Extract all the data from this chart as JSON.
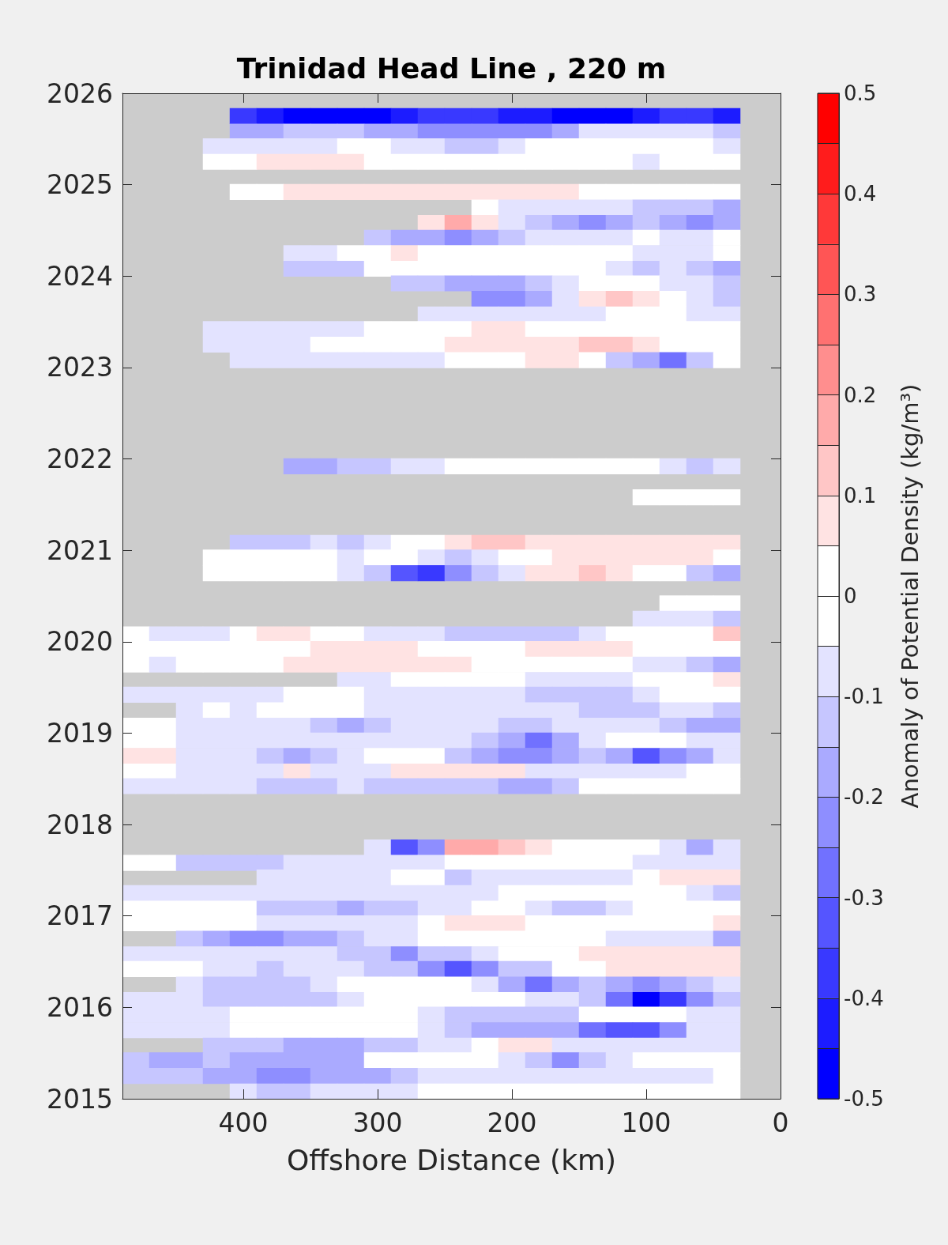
{
  "chart_data": {
    "type": "scatter",
    "title": "Trinidad Head Line , 220 m",
    "xlabel": "Offshore Distance (km)",
    "clabel": "Anomaly of Potential Density (kg/m³)",
    "marker": "square",
    "xlim": [
      490,
      0
    ],
    "xticks": [
      400,
      300,
      200,
      100,
      0
    ],
    "ylim": [
      2015,
      2026
    ],
    "yticks": [
      2015,
      2016,
      2017,
      2018,
      2019,
      2020,
      2021,
      2022,
      2023,
      2024,
      2025,
      2026
    ],
    "clim": [
      -0.5,
      0.5
    ],
    "cticks": [
      -0.5,
      {
        "value": -0.45,
        "label": null
      },
      -0.4,
      {
        "value": -0.35,
        "label": null
      },
      -0.3,
      {
        "value": -0.25,
        "label": null
      },
      -0.2,
      {
        "value": -0.15,
        "label": null
      },
      -0.1,
      {
        "value": -0.05,
        "label": null
      },
      0,
      {
        "value": 0.05,
        "label": null
      },
      0.1,
      {
        "value": 0.15,
        "label": null
      },
      0.2,
      {
        "value": 0.25,
        "label": null
      },
      0.3,
      {
        "value": 0.35,
        "label": null
      },
      0.4,
      {
        "value": 0.45,
        "label": null
      },
      0.5
    ],
    "x": [
      400,
      380,
      360,
      340,
      320,
      300,
      280,
      260,
      240,
      220,
      200,
      180,
      160,
      140,
      120,
      100,
      80,
      60,
      40,
      400,
      380,
      360,
      340,
      320,
      300,
      280,
      260,
      240,
      220,
      200,
      180,
      160,
      140,
      120,
      100,
      80,
      60,
      40,
      420,
      400,
      380,
      360,
      340,
      320,
      300,
      280,
      260,
      240,
      220,
      200,
      180,
      160,
      140,
      120,
      100,
      80,
      60,
      40,
      420,
      400,
      380,
      360,
      340,
      320,
      300,
      280,
      260,
      240,
      220,
      200,
      180,
      160,
      140,
      120,
      100,
      80,
      60,
      40,
      400,
      380,
      360,
      340,
      320,
      300,
      280,
      260,
      240,
      220,
      200,
      180,
      160,
      140,
      120,
      100,
      80,
      60,
      40,
      220,
      200,
      180,
      160,
      140,
      120,
      100,
      80,
      60,
      40,
      260,
      240,
      220,
      200,
      180,
      160,
      140,
      120,
      100,
      80,
      60,
      40,
      300,
      280,
      260,
      240,
      220,
      200,
      180,
      160,
      140,
      120,
      100,
      80,
      60,
      40,
      360,
      340,
      320,
      300,
      280,
      260,
      240,
      220,
      200,
      180,
      160,
      140,
      120,
      100,
      80,
      60,
      40,
      360,
      340,
      320,
      300,
      280,
      260,
      240,
      220,
      200,
      180,
      160,
      140,
      120,
      100,
      80,
      60,
      40,
      280,
      260,
      240,
      220,
      200,
      180,
      160,
      140,
      120,
      100,
      80,
      60,
      40,
      220,
      200,
      180,
      160,
      140,
      120,
      100,
      80,
      60,
      40,
      260,
      240,
      220,
      200,
      180,
      160,
      140,
      120,
      100,
      80,
      60,
      40,
      420,
      400,
      380,
      360,
      340,
      320,
      300,
      280,
      260,
      240,
      220,
      200,
      180,
      160,
      140,
      120,
      100,
      80,
      60,
      40,
      420,
      400,
      380,
      360,
      340,
      320,
      300,
      280,
      260,
      240,
      220,
      200,
      180,
      160,
      140,
      120,
      100,
      80,
      60,
      40,
      400,
      380,
      360,
      340,
      320,
      300,
      280,
      260,
      240,
      220,
      200,
      180,
      160,
      140,
      120,
      100,
      80,
      60,
      40,
      360,
      340,
      320,
      300,
      280,
      260,
      240,
      220,
      200,
      180,
      160,
      140,
      120,
      100,
      80,
      60,
      40,
      100,
      80,
      60,
      40,
      400,
      380,
      360,
      340,
      320,
      300,
      280,
      260,
      240,
      220,
      200,
      180,
      160,
      140,
      120,
      100,
      80,
      60,
      40,
      420,
      400,
      380,
      360,
      340,
      320,
      300,
      280,
      260,
      240,
      220,
      200,
      180,
      160,
      140,
      120,
      100,
      80,
      60,
      40,
      420,
      400,
      380,
      360,
      340,
      320,
      300,
      280,
      260,
      240,
      220,
      200,
      180,
      160,
      140,
      120,
      100,
      80,
      60,
      40,
      80,
      60,
      40,
      100,
      80,
      60,
      40,
      480,
      460,
      440,
      420,
      400,
      380,
      360,
      340,
      320,
      300,
      280,
      260,
      240,
      220,
      200,
      180,
      160,
      140,
      120,
      100,
      80,
      60,
      40,
      480,
      460,
      440,
      420,
      400,
      380,
      360,
      340,
      320,
      300,
      280,
      260,
      240,
      220,
      200,
      180,
      160,
      140,
      120,
      100,
      80,
      60,
      40,
      480,
      460,
      440,
      420,
      400,
      380,
      360,
      340,
      320,
      300,
      280,
      260,
      240,
      220,
      200,
      180,
      160,
      140,
      120,
      100,
      80,
      60,
      40,
      320,
      300,
      280,
      260,
      240,
      220,
      200,
      180,
      160,
      140,
      120,
      100,
      80,
      60,
      40,
      480,
      460,
      440,
      420,
      400,
      380,
      360,
      340,
      320,
      300,
      280,
      260,
      240,
      220,
      200,
      180,
      160,
      140,
      120,
      100,
      80,
      60,
      40,
      440,
      420,
      400,
      380,
      360,
      340,
      320,
      300,
      280,
      260,
      240,
      220,
      200,
      180,
      160,
      140,
      120,
      100,
      80,
      60,
      40,
      480,
      460,
      440,
      420,
      400,
      380,
      360,
      340,
      320,
      300,
      280,
      260,
      240,
      220,
      200,
      180,
      160,
      140,
      120,
      100,
      80,
      60,
      40,
      480,
      460,
      440,
      420,
      400,
      380,
      360,
      340,
      320,
      300,
      280,
      260,
      240,
      220,
      200,
      180,
      160,
      140,
      120,
      100,
      80,
      60,
      40,
      480,
      460,
      440,
      420,
      400,
      380,
      360,
      340,
      320,
      300,
      280,
      260,
      240,
      220,
      200,
      180,
      160,
      140,
      120,
      100,
      80,
      60,
      40,
      480,
      460,
      440,
      420,
      400,
      380,
      360,
      340,
      320,
      300,
      280,
      260,
      240,
      220,
      200,
      180,
      160,
      140,
      120,
      100,
      80,
      60,
      40,
      480,
      460,
      440,
      420,
      400,
      380,
      360,
      340,
      320,
      300,
      280,
      260,
      240,
      220,
      200,
      180,
      160,
      140,
      120,
      100,
      80,
      60,
      40,
      300,
      280,
      260,
      240,
      220,
      200,
      180,
      160,
      140,
      120,
      100,
      80,
      60,
      40,
      480,
      460,
      440,
      420,
      400,
      380,
      360,
      340,
      320,
      300,
      280,
      260,
      240,
      220,
      200,
      180,
      160,
      140,
      120,
      100,
      80,
      60,
      40,
      380,
      360,
      340,
      320,
      300,
      280,
      260,
      240,
      220,
      200,
      180,
      160,
      140,
      120,
      100,
      80,
      60,
      40,
      480,
      460,
      440,
      420,
      400,
      380,
      360,
      340,
      320,
      300,
      280,
      260,
      240,
      220,
      200,
      180,
      160,
      140,
      120,
      100,
      80,
      60,
      40,
      480,
      460,
      440,
      420,
      400,
      380,
      360,
      340,
      320,
      300,
      280,
      260,
      240,
      220,
      200,
      180,
      160,
      140,
      120,
      100,
      80,
      60,
      40,
      480,
      460,
      440,
      420,
      400,
      380,
      360,
      340,
      320,
      300,
      280,
      260,
      240,
      220,
      200,
      180,
      160,
      140,
      120,
      100,
      80,
      60,
      40,
      440,
      420,
      400,
      380,
      360,
      340,
      320,
      300,
      280,
      260,
      240,
      220,
      200,
      180,
      160,
      140,
      120,
      100,
      80,
      60,
      40,
      480,
      460,
      440,
      420,
      400,
      380,
      360,
      340,
      320,
      300,
      280,
      260,
      240,
      220,
      200,
      180,
      160,
      140,
      120,
      100,
      80,
      60,
      40,
      480,
      460,
      440,
      420,
      400,
      380,
      360,
      340,
      320,
      300,
      280,
      260,
      240,
      220,
      200,
      180,
      160,
      140,
      120,
      100,
      80,
      60,
      40,
      440,
      420,
      400,
      380,
      360,
      340,
      320,
      300,
      280,
      260,
      240,
      220,
      200,
      180,
      160,
      140,
      120,
      100,
      80,
      60,
      40,
      480,
      460,
      440,
      420,
      400,
      380,
      360,
      340,
      320,
      300,
      280,
      260,
      240,
      220,
      200,
      180,
      160,
      140,
      120,
      100,
      80,
      60,
      40,
      480,
      460,
      440,
      420,
      400,
      380,
      360,
      340,
      320,
      300,
      280,
      260,
      240,
      220,
      200,
      180,
      160,
      140,
      120,
      100,
      80,
      60,
      40,
      480,
      460,
      440,
      420,
      400,
      380,
      360,
      340,
      320,
      300,
      280,
      260,
      240,
      220,
      200,
      180,
      160,
      140,
      120,
      100,
      80,
      60,
      40,
      420,
      400,
      380,
      360,
      340,
      320,
      300,
      280,
      260,
      240,
      220,
      200,
      180,
      160,
      140,
      120,
      100,
      80,
      60,
      40,
      480,
      460,
      440,
      420,
      400,
      380,
      360,
      340,
      320,
      300,
      280,
      260,
      240,
      220,
      200,
      180,
      160,
      140,
      120,
      100,
      80,
      60,
      40,
      480,
      460,
      440,
      420,
      400,
      380,
      360,
      340,
      320,
      300,
      280,
      260,
      240,
      220,
      200,
      180,
      160,
      140,
      120,
      100,
      80,
      60,
      40,
      400,
      380,
      360,
      340,
      320,
      300,
      280,
      260,
      240,
      220,
      200,
      180,
      160,
      140,
      120,
      100,
      80,
      60,
      40
    ],
    "values": [
      2025.75,
      2025.75,
      2025.75,
      2025.75,
      2025.75,
      2025.75,
      2025.75,
      2025.75,
      2025.75,
      2025.75,
      2025.75,
      2025.75,
      2025.75,
      2025.75,
      2025.75,
      2025.75,
      2025.75,
      2025.75,
      2025.75,
      2025.58,
      2025.58,
      2025.58,
      2025.58,
      2025.58,
      2025.58,
      2025.58,
      2025.58,
      2025.58,
      2025.58,
      2025.58,
      2025.58,
      2025.58,
      2025.58,
      2025.58,
      2025.58,
      2025.58,
      2025.58,
      2025.58,
      2025.42,
      2025.42,
      2025.42,
      2025.42,
      2025.42,
      2025.42,
      2025.42,
      2025.42,
      2025.42,
      2025.42,
      2025.42,
      2025.42,
      2025.42,
      2025.42,
      2025.42,
      2025.42,
      2025.42,
      2025.42,
      2025.42,
      2025.42,
      2025.25,
      2025.25,
      2025.25,
      2025.25,
      2025.25,
      2025.25,
      2025.25,
      2025.25,
      2025.25,
      2025.25,
      2025.25,
      2025.25,
      2025.25,
      2025.25,
      2025.25,
      2025.25,
      2025.25,
      2025.25,
      2025.25,
      2025.25,
      2024.92,
      2024.92,
      2024.92,
      2024.92,
      2024.92,
      2024.92,
      2024.92,
      2024.92,
      2024.92,
      2024.92,
      2024.92,
      2024.92,
      2024.92,
      2024.92,
      2024.92,
      2024.92,
      2024.92,
      2024.92,
      2024.92,
      2024.75,
      2024.75,
      2024.75,
      2024.75,
      2024.75,
      2024.75,
      2024.75,
      2024.75,
      2024.75,
      2024.75,
      2024.58,
      2024.58,
      2024.58,
      2024.58,
      2024.58,
      2024.58,
      2024.58,
      2024.58,
      2024.58,
      2024.58,
      2024.58,
      2024.58,
      2024.42,
      2024.42,
      2024.42,
      2024.42,
      2024.42,
      2024.42,
      2024.42,
      2024.42,
      2024.42,
      2024.42,
      2024.42,
      2024.42,
      2024.42,
      2024.42,
      2024.25,
      2024.25,
      2024.25,
      2024.25,
      2024.25,
      2024.25,
      2024.25,
      2024.25,
      2024.25,
      2024.25,
      2024.25,
      2024.25,
      2024.25,
      2024.25,
      2024.25,
      2024.25,
      2024.25,
      2024.08,
      2024.08,
      2024.08,
      2024.08,
      2024.08,
      2024.08,
      2024.08,
      2024.08,
      2024.08,
      2024.08,
      2024.08,
      2024.08,
      2024.08,
      2024.08,
      2024.08,
      2024.08,
      2024.08,
      2023.92,
      2023.92,
      2023.92,
      2023.92,
      2023.92,
      2023.92,
      2023.92,
      2023.92,
      2023.92,
      2023.92,
      2023.92,
      2023.92,
      2023.92,
      2023.75,
      2023.75,
      2023.75,
      2023.75,
      2023.75,
      2023.75,
      2023.75,
      2023.75,
      2023.75,
      2023.75,
      2023.58,
      2023.58,
      2023.58,
      2023.58,
      2023.58,
      2023.58,
      2023.58,
      2023.58,
      2023.58,
      2023.58,
      2023.58,
      2023.58,
      2023.42,
      2023.42,
      2023.42,
      2023.42,
      2023.42,
      2023.42,
      2023.42,
      2023.42,
      2023.42,
      2023.42,
      2023.42,
      2023.42,
      2023.42,
      2023.42,
      2023.42,
      2023.42,
      2023.42,
      2023.42,
      2023.42,
      2023.42,
      2023.25,
      2023.25,
      2023.25,
      2023.25,
      2023.25,
      2023.25,
      2023.25,
      2023.25,
      2023.25,
      2023.25,
      2023.25,
      2023.25,
      2023.25,
      2023.25,
      2023.25,
      2023.25,
      2023.25,
      2023.25,
      2023.25,
      2023.25,
      2023.08,
      2023.08,
      2023.08,
      2023.08,
      2023.08,
      2023.08,
      2023.08,
      2023.08,
      2023.08,
      2023.08,
      2023.08,
      2023.08,
      2023.08,
      2023.08,
      2023.08,
      2023.08,
      2023.08,
      2023.08,
      2023.08,
      2021.92,
      2021.92,
      2021.92,
      2021.92,
      2021.92,
      2021.92,
      2021.92,
      2021.92,
      2021.92,
      2021.92,
      2021.92,
      2021.92,
      2021.92,
      2021.92,
      2021.92,
      2021.92,
      2021.92,
      2021.58,
      2021.58,
      2021.58,
      2021.58,
      2021.08,
      2021.08,
      2021.08,
      2021.08,
      2021.08,
      2021.08,
      2021.08,
      2021.08,
      2021.08,
      2021.08,
      2021.08,
      2021.08,
      2021.08,
      2021.08,
      2021.08,
      2021.08,
      2021.08,
      2021.08,
      2021.08,
      2020.92,
      2020.92,
      2020.92,
      2020.92,
      2020.92,
      2020.92,
      2020.92,
      2020.92,
      2020.92,
      2020.92,
      2020.92,
      2020.92,
      2020.92,
      2020.92,
      2020.92,
      2020.92,
      2020.92,
      2020.92,
      2020.92,
      2020.92,
      2020.75,
      2020.75,
      2020.75,
      2020.75,
      2020.75,
      2020.75,
      2020.75,
      2020.75,
      2020.75,
      2020.75,
      2020.75,
      2020.75,
      2020.75,
      2020.75,
      2020.75,
      2020.75,
      2020.75,
      2020.75,
      2020.75,
      2020.75,
      2020.42,
      2020.42,
      2020.42,
      2020.25,
      2020.25,
      2020.25,
      2020.25,
      2020.08,
      2020.08,
      2020.08,
      2020.08,
      2020.08,
      2020.08,
      2020.08,
      2020.08,
      2020.08,
      2020.08,
      2020.08,
      2020.08,
      2020.08,
      2020.08,
      2020.08,
      2020.08,
      2020.08,
      2020.08,
      2020.08,
      2020.08,
      2020.08,
      2020.08,
      2020.08,
      2019.92,
      2019.92,
      2019.92,
      2019.92,
      2019.92,
      2019.92,
      2019.92,
      2019.92,
      2019.92,
      2019.92,
      2019.92,
      2019.92,
      2019.92,
      2019.92,
      2019.92,
      2019.92,
      2019.92,
      2019.92,
      2019.92,
      2019.92,
      2019.92,
      2019.92,
      2019.92,
      2019.75,
      2019.75,
      2019.75,
      2019.75,
      2019.75,
      2019.75,
      2019.75,
      2019.75,
      2019.75,
      2019.75,
      2019.75,
      2019.75,
      2019.75,
      2019.75,
      2019.75,
      2019.75,
      2019.75,
      2019.75,
      2019.75,
      2019.75,
      2019.75,
      2019.75,
      2019.75,
      2019.58,
      2019.58,
      2019.58,
      2019.58,
      2019.58,
      2019.58,
      2019.58,
      2019.58,
      2019.58,
      2019.58,
      2019.58,
      2019.58,
      2019.58,
      2019.58,
      2019.58,
      2019.42,
      2019.42,
      2019.42,
      2019.42,
      2019.42,
      2019.42,
      2019.42,
      2019.42,
      2019.42,
      2019.42,
      2019.42,
      2019.42,
      2019.42,
      2019.42,
      2019.42,
      2019.42,
      2019.42,
      2019.42,
      2019.42,
      2019.42,
      2019.42,
      2019.42,
      2019.42,
      2019.25,
      2019.25,
      2019.25,
      2019.25,
      2019.25,
      2019.25,
      2019.25,
      2019.25,
      2019.25,
      2019.25,
      2019.25,
      2019.25,
      2019.25,
      2019.25,
      2019.25,
      2019.25,
      2019.25,
      2019.25,
      2019.25,
      2019.25,
      2019.25,
      2019.08,
      2019.08,
      2019.08,
      2019.08,
      2019.08,
      2019.08,
      2019.08,
      2019.08,
      2019.08,
      2019.08,
      2019.08,
      2019.08,
      2019.08,
      2019.08,
      2019.08,
      2019.08,
      2019.08,
      2019.08,
      2019.08,
      2019.08,
      2019.08,
      2019.08,
      2019.08,
      2018.92,
      2018.92,
      2018.92,
      2018.92,
      2018.92,
      2018.92,
      2018.92,
      2018.92,
      2018.92,
      2018.92,
      2018.92,
      2018.92,
      2018.92,
      2018.92,
      2018.92,
      2018.92,
      2018.92,
      2018.92,
      2018.92,
      2018.92,
      2018.92,
      2018.92,
      2018.92,
      2018.75,
      2018.75,
      2018.75,
      2018.75,
      2018.75,
      2018.75,
      2018.75,
      2018.75,
      2018.75,
      2018.75,
      2018.75,
      2018.75,
      2018.75,
      2018.75,
      2018.75,
      2018.75,
      2018.75,
      2018.75,
      2018.75,
      2018.75,
      2018.75,
      2018.75,
      2018.75,
      2018.58,
      2018.58,
      2018.58,
      2018.58,
      2018.58,
      2018.58,
      2018.58,
      2018.58,
      2018.58,
      2018.58,
      2018.58,
      2018.58,
      2018.58,
      2018.58,
      2018.58,
      2018.58,
      2018.58,
      2018.58,
      2018.58,
      2018.58,
      2018.58,
      2018.58,
      2018.58,
      2018.42,
      2018.42,
      2018.42,
      2018.42,
      2018.42,
      2018.42,
      2018.42,
      2018.42,
      2018.42,
      2018.42,
      2018.42,
      2018.42,
      2018.42,
      2018.42,
      2018.42,
      2018.42,
      2018.42,
      2018.42,
      2018.42,
      2018.42,
      2018.42,
      2018.42,
      2018.42,
      2017.75,
      2017.75,
      2017.75,
      2017.75,
      2017.75,
      2017.75,
      2017.75,
      2017.75,
      2017.75,
      2017.75,
      2017.75,
      2017.75,
      2017.75,
      2017.75,
      2017.58,
      2017.58,
      2017.58,
      2017.58,
      2017.58,
      2017.58,
      2017.58,
      2017.58,
      2017.58,
      2017.58,
      2017.58,
      2017.58,
      2017.58,
      2017.58,
      2017.58,
      2017.58,
      2017.58,
      2017.58,
      2017.58,
      2017.58,
      2017.58,
      2017.58,
      2017.58,
      2017.42,
      2017.42,
      2017.42,
      2017.42,
      2017.42,
      2017.42,
      2017.42,
      2017.42,
      2017.42,
      2017.42,
      2017.42,
      2017.42,
      2017.42,
      2017.42,
      2017.42,
      2017.42,
      2017.42,
      2017.42,
      2017.25,
      2017.25,
      2017.25,
      2017.25,
      2017.25,
      2017.25,
      2017.25,
      2017.25,
      2017.25,
      2017.25,
      2017.25,
      2017.25,
      2017.25,
      2017.25,
      2017.25,
      2017.25,
      2017.25,
      2017.25,
      2017.25,
      2017.25,
      2017.25,
      2017.25,
      2017.25,
      2017.08,
      2017.08,
      2017.08,
      2017.08,
      2017.08,
      2017.08,
      2017.08,
      2017.08,
      2017.08,
      2017.08,
      2017.08,
      2017.08,
      2017.08,
      2017.08,
      2017.08,
      2017.08,
      2017.08,
      2017.08,
      2017.08,
      2017.08,
      2017.08,
      2017.08,
      2017.08,
      2016.92,
      2016.92,
      2016.92,
      2016.92,
      2016.92,
      2016.92,
      2016.92,
      2016.92,
      2016.92,
      2016.92,
      2016.92,
      2016.92,
      2016.92,
      2016.92,
      2016.92,
      2016.92,
      2016.92,
      2016.92,
      2016.92,
      2016.92,
      2016.92,
      2016.92,
      2016.92,
      2016.75,
      2016.75,
      2016.75,
      2016.75,
      2016.75,
      2016.75,
      2016.75,
      2016.75,
      2016.75,
      2016.75,
      2016.75,
      2016.75,
      2016.75,
      2016.75,
      2016.75,
      2016.75,
      2016.75,
      2016.75,
      2016.75,
      2016.75,
      2016.75,
      2016.58,
      2016.58,
      2016.58,
      2016.58,
      2016.58,
      2016.58,
      2016.58,
      2016.58,
      2016.58,
      2016.58,
      2016.58,
      2016.58,
      2016.58,
      2016.58,
      2016.58,
      2016.58,
      2016.58,
      2016.58,
      2016.58,
      2016.58,
      2016.58,
      2016.58,
      2016.58,
      2016.42,
      2016.42,
      2016.42,
      2016.42,
      2016.42,
      2016.42,
      2016.42,
      2016.42,
      2016.42,
      2016.42,
      2016.42,
      2016.42,
      2016.42,
      2016.42,
      2016.42,
      2016.42,
      2016.42,
      2016.42,
      2016.42,
      2016.42,
      2016.42,
      2016.42,
      2016.42,
      2016.25,
      2016.25,
      2016.25,
      2016.25,
      2016.25,
      2016.25,
      2016.25,
      2016.25,
      2016.25,
      2016.25,
      2016.25,
      2016.25,
      2016.25,
      2016.25,
      2016.25,
      2016.25,
      2016.25,
      2016.25,
      2016.25,
      2016.25,
      2016.25,
      2016.08,
      2016.08,
      2016.08,
      2016.08,
      2016.08,
      2016.08,
      2016.08,
      2016.08,
      2016.08,
      2016.08,
      2016.08,
      2016.08,
      2016.08,
      2016.08,
      2016.08,
      2016.08,
      2016.08,
      2016.08,
      2016.08,
      2016.08,
      2016.08,
      2016.08,
      2016.08,
      2015.92,
      2015.92,
      2015.92,
      2015.92,
      2015.92,
      2015.92,
      2015.92,
      2015.92,
      2015.92,
      2015.92,
      2015.92,
      2015.92,
      2015.92,
      2015.92,
      2015.92,
      2015.92,
      2015.92,
      2015.92,
      2015.92,
      2015.92,
      2015.92,
      2015.92,
      2015.92,
      2015.75,
      2015.75,
      2015.75,
      2015.75,
      2015.75,
      2015.75,
      2015.75,
      2015.75,
      2015.75,
      2015.75,
      2015.75,
      2015.75,
      2015.75,
      2015.75,
      2015.75,
      2015.75,
      2015.75,
      2015.75,
      2015.75,
      2015.75,
      2015.75,
      2015.75,
      2015.75,
      2015.58,
      2015.58,
      2015.58,
      2015.58,
      2015.58,
      2015.58,
      2015.58,
      2015.58,
      2015.58,
      2015.58,
      2015.58,
      2015.58,
      2015.58,
      2015.58,
      2015.58,
      2015.58,
      2015.58,
      2015.58,
      2015.58,
      2015.58,
      2015.42,
      2015.42,
      2015.42,
      2015.42,
      2015.42,
      2015.42,
      2015.42,
      2015.42,
      2015.42,
      2015.42,
      2015.42,
      2015.42,
      2015.42,
      2015.42,
      2015.42,
      2015.42,
      2015.42,
      2015.42,
      2015.42,
      2015.42,
      2015.42,
      2015.42,
      2015.42,
      2015.25,
      2015.25,
      2015.25,
      2015.25,
      2015.25,
      2015.25,
      2015.25,
      2015.25,
      2015.25,
      2015.25,
      2015.25,
      2015.25,
      2015.25,
      2015.25,
      2015.25,
      2015.25,
      2015.25,
      2015.25,
      2015.25,
      2015.25,
      2015.25,
      2015.25,
      2015.25,
      2015.08,
      2015.08,
      2015.08,
      2015.08,
      2015.08,
      2015.08,
      2015.08,
      2015.08,
      2015.08,
      2015.08,
      2015.08,
      2015.08,
      2015.08,
      2015.08,
      2015.08,
      2015.08,
      2015.08,
      2015.08,
      2015.08
    ],
    "cvalues": [
      -0.38,
      -0.43,
      -0.48,
      -0.48,
      -0.48,
      -0.48,
      -0.43,
      -0.38,
      -0.38,
      -0.38,
      -0.43,
      -0.43,
      -0.48,
      -0.48,
      -0.48,
      -0.43,
      -0.38,
      -0.38,
      -0.43,
      -0.18,
      -0.18,
      -0.13,
      -0.13,
      -0.13,
      -0.18,
      -0.18,
      -0.23,
      -0.23,
      -0.23,
      -0.23,
      -0.23,
      -0.18,
      -0.08,
      -0.08,
      -0.08,
      -0.08,
      -0.08,
      -0.13,
      -0.08,
      -0.08,
      -0.08,
      -0.08,
      -0.08,
      0,
      0,
      -0.08,
      -0.08,
      -0.13,
      -0.13,
      -0.08,
      0,
      0,
      0,
      0,
      0,
      0,
      0,
      -0.08,
      0,
      0,
      0.08,
      0.08,
      0.08,
      0.08,
      0,
      0,
      0,
      0,
      0,
      0,
      0,
      0,
      0,
      0,
      -0.08,
      0,
      0,
      0,
      0,
      0,
      0.08,
      0.08,
      0.08,
      0.08,
      0.08,
      0.08,
      0.08,
      0.08,
      0.08,
      0.08,
      0.08,
      0,
      0,
      0,
      0,
      0,
      0,
      0,
      -0.08,
      -0.08,
      -0.08,
      -0.08,
      -0.08,
      -0.13,
      -0.13,
      -0.13,
      -0.18,
      0.08,
      0.18,
      0.08,
      -0.08,
      -0.13,
      -0.18,
      -0.23,
      -0.18,
      -0.13,
      -0.18,
      -0.23,
      -0.18,
      -0.13,
      -0.18,
      -0.18,
      -0.23,
      -0.18,
      -0.13,
      -0.08,
      -0.08,
      -0.08,
      -0.08,
      0,
      -0.08,
      -0.08,
      0,
      -0.08,
      -0.08,
      0,
      0,
      0.08,
      0,
      0,
      0,
      0,
      0,
      0,
      0,
      0,
      -0.08,
      -0.08,
      -0.08,
      0,
      -0.13,
      -0.13,
      -0.13,
      0,
      0,
      0,
      0,
      0,
      0,
      0,
      0,
      0,
      -0.08,
      -0.13,
      -0.08,
      -0.13,
      -0.18,
      -0.13,
      -0.13,
      -0.18,
      -0.18,
      -0.18,
      -0.13,
      -0.08,
      0,
      0,
      0,
      -0.08,
      -0.08,
      -0.13,
      -0.23,
      -0.23,
      -0.18,
      -0.08,
      0.08,
      0.13,
      0.08,
      0,
      -0.08,
      -0.13,
      -0.08,
      -0.08,
      -0.08,
      -0.08,
      -0.08,
      -0.08,
      -0.08,
      0,
      0,
      0,
      -0.08,
      -0.08,
      -0.08,
      -0.08,
      -0.08,
      -0.08,
      -0.08,
      -0.08,
      0,
      0,
      0,
      0,
      0.08,
      0.08,
      0,
      0,
      0,
      0,
      0,
      0,
      0,
      0,
      -0.08,
      -0.08,
      -0.08,
      -0.08,
      0,
      0,
      0,
      0,
      0,
      0.08,
      0.08,
      0.08,
      0.08,
      0.08,
      0.13,
      0.13,
      0.08,
      0,
      0,
      0,
      -0.08,
      -0.08,
      -0.08,
      -0.08,
      -0.08,
      -0.08,
      -0.08,
      -0.08,
      0,
      0,
      0,
      0.08,
      0.08,
      0,
      -0.13,
      -0.18,
      -0.28,
      -0.13,
      0,
      -0.18,
      -0.18,
      -0.13,
      -0.13,
      -0.08,
      -0.08,
      0,
      0,
      0,
      0,
      0,
      0,
      0,
      0,
      -0.08,
      -0.13,
      -0.08,
      0,
      0,
      0,
      0,
      -0.13,
      -0.13,
      -0.13,
      -0.08,
      -0.13,
      -0.08,
      0,
      0,
      0.08,
      0.13,
      0.13,
      0.08,
      0.08,
      0.08,
      0.08,
      0.08,
      0.08,
      0.08,
      0.08,
      0,
      0,
      0,
      0,
      0,
      -0.08,
      0,
      0,
      -0.08,
      -0.13,
      -0.08,
      0,
      0,
      0.08,
      0.08,
      0.08,
      0.08,
      0.08,
      0.08,
      0,
      0,
      0,
      0,
      0,
      0,
      -0.08,
      -0.13,
      -0.33,
      -0.38,
      -0.23,
      -0.13,
      -0.08,
      0.08,
      0.08,
      0.13,
      0.08,
      0,
      0,
      -0.13,
      -0.18,
      0,
      0,
      0,
      -0.08,
      -0.08,
      -0.08,
      -0.13,
      0,
      -0.08,
      -0.08,
      -0.08,
      0,
      0.08,
      0.08,
      0,
      0,
      -0.08,
      -0.08,
      -0.08,
      -0.13,
      -0.13,
      -0.13,
      -0.13,
      -0.13,
      -0.08,
      0,
      0,
      0,
      0,
      0.13,
      0,
      0,
      0,
      0,
      0,
      0,
      0,
      0.08,
      0.08,
      0.08,
      0.08,
      0,
      0,
      0,
      0,
      0.08,
      0.08,
      0.08,
      0.08,
      0,
      0,
      0,
      0,
      0,
      -0.08,
      0,
      0,
      0,
      0,
      0.08,
      0.08,
      0.08,
      0.08,
      0.08,
      0.08,
      0.08,
      0,
      0,
      0,
      0,
      0,
      0,
      -0.08,
      -0.08,
      -0.13,
      -0.18,
      -0.08,
      -0.08,
      0,
      0,
      0,
      0,
      0,
      -0.08,
      -0.08,
      -0.08,
      -0.08,
      0,
      0,
      0,
      0.08,
      -0.08,
      -0.08,
      -0.08,
      -0.08,
      -0.08,
      -0.08,
      0,
      0,
      0,
      -0.08,
      -0.08,
      -0.08,
      -0.08,
      -0.08,
      -0.08,
      -0.13,
      -0.13,
      -0.13,
      -0.13,
      -0.08,
      0,
      0,
      0,
      -0.08,
      0,
      -0.08,
      0,
      0,
      0,
      0,
      -0.08,
      -0.08,
      -0.08,
      -0.08,
      -0.08,
      -0.08,
      -0.08,
      -0.08,
      -0.13,
      -0.13,
      -0.13,
      -0.08,
      -0.08,
      -0.13,
      0,
      0,
      -0.08,
      -0.08,
      -0.08,
      -0.08,
      -0.08,
      -0.13,
      -0.18,
      -0.13,
      -0.08,
      -0.08,
      -0.08,
      -0.08,
      -0.13,
      -0.13,
      -0.08,
      -0.08,
      -0.08,
      -0.08,
      -0.13,
      -0.18,
      -0.18,
      0,
      0,
      -0.08,
      -0.08,
      -0.08,
      -0.08,
      -0.08,
      -0.08,
      -0.08,
      -0.08,
      -0.08,
      -0.08,
      -0.08,
      -0.13,
      -0.18,
      -0.28,
      -0.18,
      -0.08,
      0,
      0,
      0,
      -0.08,
      -0.08,
      0.08,
      0.08,
      -0.08,
      -0.08,
      -0.08,
      -0.13,
      -0.18,
      -0.13,
      -0.08,
      0,
      0,
      0,
      -0.13,
      -0.18,
      -0.23,
      -0.23,
      -0.18,
      -0.13,
      -0.18,
      -0.33,
      -0.23,
      -0.18,
      -0.08,
      0,
      0,
      -0.08,
      -0.08,
      -0.08,
      -0.08,
      0.08,
      -0.08,
      -0.08,
      -0.08,
      0.08,
      0.08,
      0.08,
      0.08,
      0.08,
      -0.08,
      -0.08,
      -0.08,
      -0.08,
      -0.08,
      -0.08,
      0,
      0,
      -0.08,
      -0.08,
      -0.08,
      -0.08,
      -0.08,
      -0.13,
      -0.13,
      -0.13,
      -0.08,
      -0.13,
      -0.13,
      -0.13,
      -0.13,
      -0.13,
      -0.18,
      -0.18,
      -0.13,
      0,
      0,
      0,
      0,
      0,
      0,
      -0.08,
      -0.33,
      -0.23,
      0.18,
      0.18,
      0.13,
      0.08,
      0,
      0,
      0,
      0,
      -0.08,
      -0.18,
      -0.08,
      0,
      0,
      -0.13,
      -0.13,
      -0.13,
      -0.13,
      -0.08,
      -0.08,
      -0.08,
      -0.08,
      -0.08,
      -0.08,
      0,
      0,
      0,
      0,
      0,
      0,
      0,
      -0.08,
      -0.08,
      -0.08,
      -0.08,
      -0.08,
      -0.08,
      -0.08,
      -0.08,
      -0.08,
      0,
      0,
      -0.13,
      -0.08,
      -0.08,
      -0.08,
      -0.08,
      -0.08,
      -0.08,
      0,
      0.08,
      0.08,
      0.08,
      -0.08,
      -0.08,
      -0.08,
      -0.08,
      -0.08,
      -0.08,
      -0.08,
      -0.08,
      -0.08,
      -0.08,
      -0.08,
      -0.08,
      -0.08,
      -0.08,
      0,
      0,
      0,
      0,
      0,
      0,
      0,
      -0.08,
      -0.13,
      0,
      0,
      0,
      0,
      0,
      -0.13,
      -0.13,
      -0.13,
      -0.18,
      -0.13,
      -0.13,
      -0.08,
      -0.08,
      0,
      0,
      -0.08,
      -0.13,
      -0.13,
      -0.08,
      0,
      0,
      0,
      0,
      0,
      0,
      0,
      0,
      0,
      -0.08,
      -0.08,
      -0.08,
      -0.08,
      -0.08,
      -0.08,
      0,
      0.08,
      0.08,
      0.08,
      0,
      0,
      0,
      0,
      0,
      0,
      0,
      0.08,
      -0.13,
      -0.18,
      -0.23,
      -0.23,
      -0.18,
      -0.18,
      -0.13,
      -0.08,
      -0.08,
      0,
      0,
      0,
      0,
      0,
      0,
      0,
      -0.08,
      -0.08,
      -0.08,
      -0.08,
      -0.18,
      -0.08,
      -0.08,
      -0.08,
      -0.08,
      -0.08,
      -0.08,
      -0.08,
      -0.08,
      -0.13,
      -0.13,
      -0.23,
      -0.13,
      -0.13,
      -0.08,
      0,
      0,
      0,
      0.08,
      0.08,
      0.08,
      0.08,
      0.08,
      0.08,
      0,
      0,
      0,
      -0.08,
      -0.08,
      -0.13,
      -0.08,
      -0.08,
      -0.08,
      -0.13,
      -0.13,
      -0.23,
      -0.33,
      -0.23,
      -0.13,
      -0.13,
      0,
      0,
      0.08,
      0.08,
      0.08,
      0.08,
      0.08,
      -0.08,
      -0.13,
      -0.13,
      -0.13,
      -0.13,
      -0.08,
      0,
      0,
      0,
      0,
      0,
      -0.08,
      -0.18,
      -0.28,
      -0.18,
      -0.13,
      -0.18,
      -0.23,
      -0.18,
      -0.13,
      -0.08,
      -0.08,
      -0.08,
      -0.08,
      -0.13,
      -0.13,
      -0.13,
      -0.13,
      -0.13,
      -0.08,
      0,
      0,
      0,
      0,
      0,
      0,
      -0.08,
      -0.08,
      -0.13,
      -0.28,
      -0.48,
      -0.38,
      -0.23,
      -0.13,
      -0.08,
      -0.08,
      -0.08,
      -0.08,
      0,
      0,
      0,
      0,
      0,
      0,
      0,
      -0.08,
      -0.13,
      -0.13,
      -0.13,
      -0.13,
      -0.13,
      0,
      0,
      0,
      0,
      -0.08,
      -0.08,
      -0.08,
      -0.08,
      -0.08,
      -0.08,
      0,
      0,
      0,
      0,
      0,
      0,
      0,
      -0.08,
      -0.13,
      -0.18,
      -0.18,
      -0.18,
      -0.18,
      -0.28,
      -0.33,
      -0.33,
      -0.23,
      -0.08,
      -0.08,
      -0.13,
      -0.13,
      -0.13,
      -0.18,
      -0.18,
      -0.18,
      -0.13,
      -0.13,
      -0.08,
      -0.08,
      0,
      0.08,
      0.08,
      -0.08,
      -0.08,
      -0.08,
      -0.08,
      -0.08,
      -0.08,
      -0.08,
      -0.13,
      -0.18,
      -0.18,
      -0.13,
      -0.18,
      -0.18,
      -0.18,
      -0.18,
      -0.18,
      0,
      0,
      0,
      0,
      0,
      -0.08,
      -0.13,
      -0.23,
      -0.13,
      -0.08,
      0,
      0,
      0,
      0,
      -0.13,
      -0.13,
      -0.13,
      -0.18,
      -0.18,
      -0.23,
      -0.23,
      -0.18,
      -0.18,
      -0.18,
      -0.13,
      -0.08,
      -0.08,
      -0.08,
      -0.08,
      -0.08,
      -0.08,
      -0.08,
      -0.08,
      -0.08,
      -0.08,
      -0.08,
      0,
      -0.08,
      -0.13,
      -0.13,
      -0.08,
      -0.08,
      -0.08,
      -0.08,
      0,
      0,
      0,
      0,
      0,
      0,
      0,
      0,
      0,
      0,
      0,
      0
    ]
  }
}
